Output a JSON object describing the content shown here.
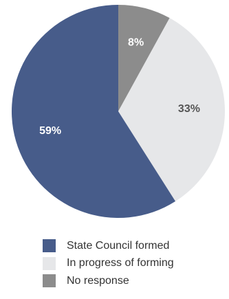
{
  "chart_data": {
    "type": "pie",
    "title": "",
    "start_angle_deg": 0,
    "direction": "clockwise",
    "slices": [
      {
        "label": "No response",
        "value": 8,
        "value_label": "8%",
        "color": "#8c8c8c",
        "label_color": "#ffffff"
      },
      {
        "label": "In progress of forming",
        "value": 33,
        "value_label": "33%",
        "color": "#e6e7e9",
        "label_color": "#555555"
      },
      {
        "label": "State Council formed",
        "value": 59,
        "value_label": "59%",
        "color": "#475c8a",
        "label_color": "#ffffff"
      }
    ],
    "legend": {
      "position": "bottom",
      "items": [
        {
          "label": "State Council formed",
          "color": "#475c8a"
        },
        {
          "label": "In progress of forming",
          "color": "#e6e7e9"
        },
        {
          "label": "No response",
          "color": "#8c8c8c"
        }
      ]
    }
  }
}
